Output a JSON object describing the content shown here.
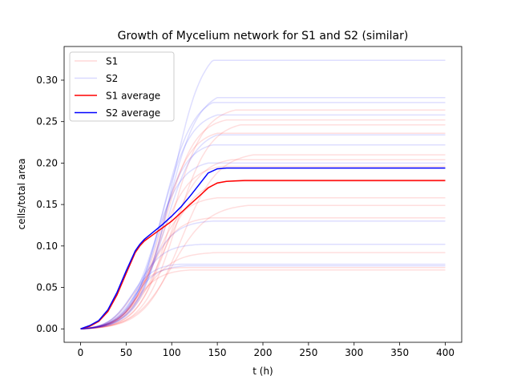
{
  "chart_data": {
    "type": "line",
    "title": "Growth of Mycelium network for S1 and S2 (similar)",
    "xlabel": "t (h)",
    "ylabel": "cells/total area",
    "xlim": [
      -18,
      418
    ],
    "ylim": [
      -0.0162,
      0.3406
    ],
    "xticks": [
      0,
      50,
      100,
      150,
      200,
      250,
      300,
      350,
      400
    ],
    "xtick_labels": [
      "0",
      "50",
      "100",
      "150",
      "200",
      "250",
      "300",
      "350",
      "400"
    ],
    "yticks": [
      0.0,
      0.05,
      0.1,
      0.15,
      0.2,
      0.25,
      0.3
    ],
    "ytick_labels": [
      "0.00",
      "0.05",
      "0.10",
      "0.15",
      "0.20",
      "0.25",
      "0.30"
    ],
    "grid": false,
    "legend_position": "top-left",
    "colors": {
      "S1": "#ff0000",
      "S2": "#0000ff"
    },
    "legend": [
      {
        "label": "S1",
        "series": "S1",
        "faint": true
      },
      {
        "label": "S2",
        "series": "S2",
        "faint": true
      },
      {
        "label": "S1 average",
        "series": "S1",
        "faint": false
      },
      {
        "label": "S2 average",
        "series": "S2",
        "faint": false
      }
    ],
    "series": [
      {
        "group": "S1",
        "final": 0.264,
        "midpoint": 100,
        "rate": 0.058,
        "plateau_t": 170
      },
      {
        "group": "S1",
        "final": 0.252,
        "midpoint": 92,
        "rate": 0.06,
        "plateau_t": 160
      },
      {
        "group": "S1",
        "final": 0.246,
        "midpoint": 105,
        "rate": 0.055,
        "plateau_t": 175
      },
      {
        "group": "S1",
        "final": 0.236,
        "midpoint": 88,
        "rate": 0.062,
        "plateau_t": 150
      },
      {
        "group": "S1",
        "final": 0.21,
        "midpoint": 110,
        "rate": 0.05,
        "plateau_t": 190
      },
      {
        "group": "S1",
        "final": 0.204,
        "midpoint": 95,
        "rate": 0.058,
        "plateau_t": 165
      },
      {
        "group": "S1",
        "final": 0.196,
        "midpoint": 85,
        "rate": 0.06,
        "plateau_t": 155
      },
      {
        "group": "S1",
        "final": 0.178,
        "midpoint": 90,
        "rate": 0.055,
        "plateau_t": 160
      },
      {
        "group": "S1",
        "final": 0.158,
        "midpoint": 80,
        "rate": 0.062,
        "plateau_t": 150
      },
      {
        "group": "S1",
        "final": 0.149,
        "midpoint": 100,
        "rate": 0.05,
        "plateau_t": 185
      },
      {
        "group": "S1",
        "final": 0.134,
        "midpoint": 75,
        "rate": 0.065,
        "plateau_t": 145
      },
      {
        "group": "S1",
        "final": 0.092,
        "midpoint": 70,
        "rate": 0.06,
        "plateau_t": 150
      },
      {
        "group": "S1",
        "final": 0.074,
        "midpoint": 55,
        "rate": 0.08,
        "plateau_t": 110
      },
      {
        "group": "S1",
        "final": 0.071,
        "midpoint": 60,
        "rate": 0.07,
        "plateau_t": 120
      },
      {
        "group": "S2",
        "final": 0.324,
        "midpoint": 100,
        "rate": 0.06,
        "plateau_t": 145
      },
      {
        "group": "S2",
        "final": 0.279,
        "midpoint": 95,
        "rate": 0.06,
        "plateau_t": 150
      },
      {
        "group": "S2",
        "final": 0.273,
        "midpoint": 90,
        "rate": 0.06,
        "plateau_t": 145
      },
      {
        "group": "S2",
        "final": 0.258,
        "midpoint": 88,
        "rate": 0.062,
        "plateau_t": 150
      },
      {
        "group": "S2",
        "final": 0.234,
        "midpoint": 92,
        "rate": 0.06,
        "plateau_t": 150
      },
      {
        "group": "S2",
        "final": 0.222,
        "midpoint": 85,
        "rate": 0.065,
        "plateau_t": 145
      },
      {
        "group": "S2",
        "final": 0.2,
        "midpoint": 80,
        "rate": 0.065,
        "plateau_t": 140
      },
      {
        "group": "S2",
        "final": 0.13,
        "midpoint": 72,
        "rate": 0.065,
        "plateau_t": 145
      },
      {
        "group": "S2",
        "final": 0.102,
        "midpoint": 62,
        "rate": 0.07,
        "plateau_t": 135
      },
      {
        "group": "S2",
        "final": 0.078,
        "midpoint": 55,
        "rate": 0.08,
        "plateau_t": 110
      },
      {
        "group": "S2",
        "final": 0.076,
        "midpoint": 58,
        "rate": 0.075,
        "plateau_t": 115
      }
    ],
    "averages": [
      {
        "name": "S1 average",
        "group": "S1",
        "x": [
          0,
          10,
          20,
          30,
          40,
          50,
          60,
          65,
          70,
          80,
          90,
          100,
          110,
          120,
          130,
          140,
          150,
          160,
          170,
          180,
          200,
          250,
          300,
          350,
          400
        ],
        "y": [
          0.0,
          0.003,
          0.009,
          0.021,
          0.041,
          0.067,
          0.092,
          0.1,
          0.106,
          0.114,
          0.122,
          0.13,
          0.14,
          0.15,
          0.16,
          0.17,
          0.176,
          0.178,
          0.1785,
          0.179,
          0.179,
          0.179,
          0.179,
          0.179,
          0.179
        ]
      },
      {
        "name": "S2 average",
        "group": "S2",
        "x": [
          0,
          10,
          20,
          30,
          40,
          50,
          60,
          65,
          70,
          80,
          90,
          100,
          110,
          120,
          130,
          140,
          150,
          160,
          170,
          180,
          200,
          250,
          300,
          350,
          400
        ],
        "y": [
          0.0,
          0.004,
          0.01,
          0.023,
          0.044,
          0.07,
          0.094,
          0.102,
          0.108,
          0.117,
          0.126,
          0.136,
          0.147,
          0.16,
          0.174,
          0.188,
          0.193,
          0.194,
          0.194,
          0.194,
          0.194,
          0.194,
          0.194,
          0.194,
          0.194
        ]
      }
    ]
  }
}
